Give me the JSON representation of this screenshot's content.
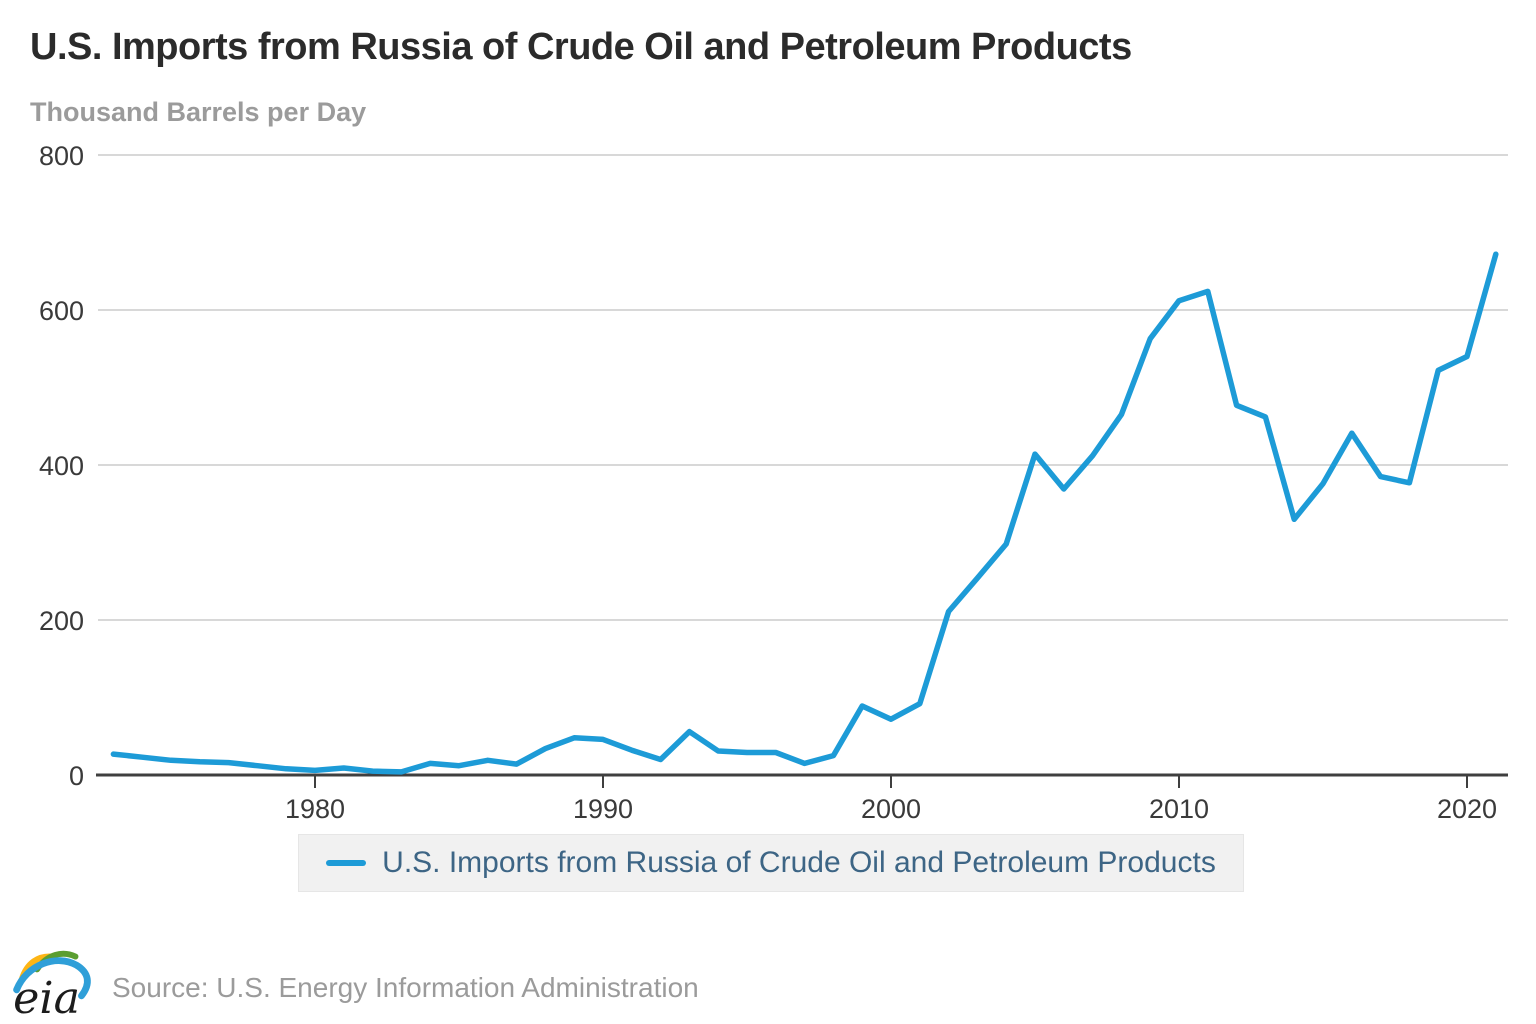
{
  "title": "U.S. Imports from Russia of Crude Oil and Petroleum Products",
  "subtitle": "Thousand Barrels per Day",
  "legend": {
    "label": "U.S. Imports from Russia of Crude Oil and Petroleum Products"
  },
  "footer": {
    "logo_text": "eia",
    "source": "Source: U.S. Energy Information Administration"
  },
  "colors": {
    "line": "#1d9bd7",
    "grid": "#cccccc",
    "axis": "#3f3f3f",
    "tick_label": "#3a3a3a",
    "title": "#2b2b2b",
    "subtitle": "#9b9b9b",
    "legend_text": "#3d6585",
    "legend_bg": "#f1f1f1",
    "logo_yellow": "#fdb515",
    "logo_green": "#5b9e31",
    "logo_blue": "#2f9fd8",
    "logo_text": "#1c1c1c"
  },
  "chart_data": {
    "type": "line",
    "title": "U.S. Imports from Russia of Crude Oil and Petroleum Products",
    "xlabel": "",
    "ylabel": "Thousand Barrels per Day",
    "grid": true,
    "legend_position": "bottom",
    "xlim": [
      1972.5,
      2022.4
    ],
    "ylim": [
      0,
      800
    ],
    "x_ticks": [
      1980,
      1990,
      2000,
      2010,
      2020
    ],
    "y_ticks": [
      0,
      200,
      400,
      600,
      800
    ],
    "series": [
      {
        "name": "U.S. Imports from Russia of Crude Oil and Petroleum Products",
        "x": [
          1973,
          1974,
          1975,
          1976,
          1977,
          1978,
          1979,
          1980,
          1981,
          1982,
          1983,
          1984,
          1985,
          1986,
          1987,
          1988,
          1989,
          1990,
          1991,
          1992,
          1993,
          1994,
          1995,
          1996,
          1997,
          1998,
          1999,
          2000,
          2001,
          2002,
          2003,
          2004,
          2005,
          2006,
          2007,
          2008,
          2009,
          2010,
          2011,
          2012,
          2013,
          2014,
          2015,
          2016,
          2017,
          2018,
          2019,
          2020,
          2021
        ],
        "values": [
          27,
          23,
          19,
          17,
          16,
          12,
          8,
          6,
          9,
          5,
          4,
          15,
          12,
          19,
          14,
          34,
          48,
          46,
          32,
          20,
          56,
          31,
          29,
          29,
          15,
          25,
          89,
          72,
          92,
          211,
          254,
          298,
          414,
          369,
          412,
          465,
          563,
          612,
          624,
          477,
          462,
          330,
          376,
          441,
          385,
          377,
          522,
          540,
          672
        ]
      }
    ]
  }
}
